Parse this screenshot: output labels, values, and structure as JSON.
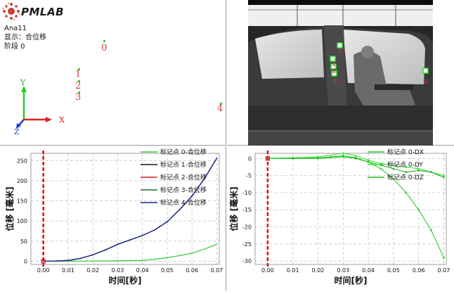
{
  "logo": {
    "text": "PMLAB"
  },
  "viewer3d": {
    "info_lines": [
      "Ana11",
      "显示：合位移",
      "阶段 0"
    ],
    "markers": [
      "0",
      "1",
      "2",
      "3",
      "4"
    ],
    "axes": {
      "x": "X",
      "y": "Y",
      "z": "Z"
    }
  },
  "video": {
    "overlay_text": "",
    "marker_labels": [
      "0",
      "1",
      "2",
      "3",
      "4"
    ]
  },
  "colors": {
    "marker_label": "#d23a3a",
    "cursor": "#e01010",
    "grid": "#c8c8c8"
  },
  "chart_data": [
    {
      "type": "line",
      "title": "",
      "xlabel": "时间[秒]",
      "ylabel": "位移 [毫米]",
      "xlim": [
        -0.005,
        0.071
      ],
      "ylim": [
        -8,
        268
      ],
      "xticks": [
        "0.00",
        "0.01",
        "0.02",
        "0.03",
        "0.04",
        "0.05",
        "0.06",
        "0.07"
      ],
      "yticks": [
        "0",
        "50",
        "100",
        "150",
        "200",
        "250"
      ],
      "grid": true,
      "legend_position": "top-right",
      "cursor_x": 0.0,
      "series": [
        {
          "name": "标记点 0-合位移",
          "color": "#3fcf3f",
          "x": [
            0,
            0.01,
            0.02,
            0.03,
            0.04,
            0.045,
            0.05,
            0.055,
            0.06,
            0.065,
            0.07
          ],
          "y": [
            0,
            0.2,
            0.5,
            1,
            2,
            5,
            9,
            14,
            20,
            30,
            42
          ]
        },
        {
          "name": "标记点 1-合位移",
          "color": "#1a1a1a",
          "x": [
            0,
            0.005,
            0.01,
            0.015,
            0.02,
            0.025,
            0.03,
            0.035,
            0.04,
            0.045,
            0.05,
            0.055,
            0.06,
            0.065,
            0.07
          ],
          "y": [
            0,
            0.5,
            2,
            7,
            16,
            28,
            42,
            53,
            64,
            78,
            98,
            128,
            162,
            205,
            256
          ]
        },
        {
          "name": "标记点 2-合位移",
          "color": "#d42020",
          "x": [
            0,
            0.005,
            0.01,
            0.015,
            0.02,
            0.025,
            0.03,
            0.035,
            0.04,
            0.045,
            0.05,
            0.055,
            0.06,
            0.065,
            0.07
          ],
          "y": [
            0,
            0.5,
            2,
            7,
            16,
            28,
            42,
            53,
            64,
            78,
            98,
            128,
            162,
            205,
            256
          ]
        },
        {
          "name": "标记点 3-合位移",
          "color": "#1f7a1f",
          "x": [
            0,
            0.005,
            0.01,
            0.015,
            0.02,
            0.025,
            0.03,
            0.035,
            0.04,
            0.045,
            0.05,
            0.055,
            0.06,
            0.065,
            0.07
          ],
          "y": [
            0,
            0.5,
            2,
            7,
            16,
            28,
            42,
            53,
            64,
            78,
            98,
            128,
            162,
            205,
            256
          ]
        },
        {
          "name": "标记点 4-合位移",
          "color": "#1a2a9a",
          "x": [
            0,
            0.005,
            0.01,
            0.015,
            0.02,
            0.025,
            0.03,
            0.035,
            0.04,
            0.045,
            0.05,
            0.055,
            0.06,
            0.065,
            0.07
          ],
          "y": [
            0,
            0.5,
            2,
            7,
            16,
            28,
            42,
            53,
            64,
            78,
            98,
            128,
            162,
            205,
            256
          ]
        }
      ]
    },
    {
      "type": "line",
      "title": "",
      "xlabel": "时间[秒]",
      "ylabel": "位移 [毫米]",
      "xlim": [
        -0.005,
        0.071
      ],
      "ylim": [
        -31,
        1.5
      ],
      "xticks": [
        "0.00",
        "0.01",
        "0.02",
        "0.03",
        "0.04",
        "0.05",
        "0.06",
        "0.07"
      ],
      "yticks": [
        "0",
        "-5",
        "-10",
        "-15",
        "-20",
        "-25",
        "-30"
      ],
      "grid": true,
      "legend_position": "top-right",
      "cursor_x": 0.0,
      "series": [
        {
          "name": "标记点 0-DX",
          "color": "#2ecc2e",
          "x": [
            0,
            0.01,
            0.02,
            0.025,
            0.03,
            0.035,
            0.04,
            0.045,
            0.05,
            0.055,
            0.06,
            0.065,
            0.07
          ],
          "y": [
            0,
            0,
            0.2,
            0.5,
            0.8,
            0.2,
            -1,
            -3,
            -6,
            -10,
            -15,
            -21,
            -29
          ]
        },
        {
          "name": "标记点 0-DY",
          "color": "#44dd44",
          "x": [
            0,
            0.01,
            0.02,
            0.03,
            0.035,
            0.04,
            0.045,
            0.05,
            0.055,
            0.06,
            0.065,
            0.07
          ],
          "y": [
            0,
            0.2,
            0.5,
            1.5,
            0.8,
            -0.5,
            -1.5,
            -2,
            -2.5,
            -3,
            -4,
            -5
          ]
        },
        {
          "name": "标记点 0-DZ",
          "color": "#22bb22",
          "x": [
            0,
            0.01,
            0.02,
            0.03,
            0.035,
            0.04,
            0.045,
            0.05,
            0.055,
            0.06,
            0.065,
            0.07
          ],
          "y": [
            0,
            0,
            0,
            0.5,
            0,
            -1,
            -2,
            -3,
            -4,
            -3.5,
            -4,
            -5.5
          ]
        }
      ]
    }
  ]
}
